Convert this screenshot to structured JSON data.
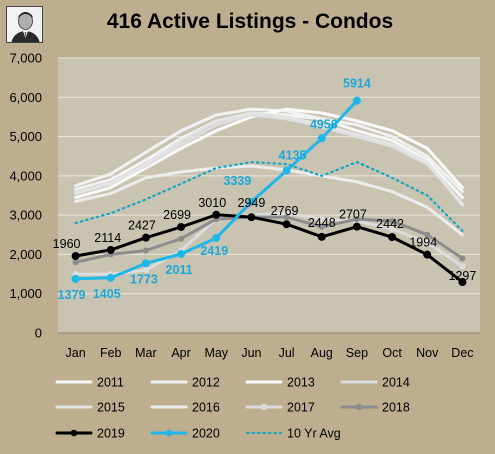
{
  "chart_data": {
    "type": "line",
    "title": "416 Active Listings - Condos",
    "xlabel": "",
    "ylabel": "",
    "categories": [
      "Jan",
      "Feb",
      "Mar",
      "Apr",
      "May",
      "Jun",
      "Jul",
      "Aug",
      "Sep",
      "Oct",
      "Nov",
      "Dec"
    ],
    "ylim": [
      0,
      7000
    ],
    "yticks": [
      "0",
      "1,000",
      "2,000",
      "3,000",
      "4,000",
      "5,000",
      "6,000",
      "7,000"
    ],
    "grid": true,
    "legend_position": "bottom",
    "series": [
      {
        "name": "2011",
        "color": "#f6f6f6",
        "values": [
          3650,
          3900,
          4400,
          4950,
          5400,
          5600,
          5550,
          5450,
          5150,
          4900,
          4400,
          3450
        ],
        "labels": false,
        "marker": false,
        "style": "solid"
      },
      {
        "name": "2012",
        "color": "#f1f1f1",
        "values": [
          3750,
          4050,
          4600,
          5150,
          5550,
          5700,
          5650,
          5450,
          5300,
          5000,
          4500,
          3600
        ],
        "labels": false,
        "marker": false,
        "style": "solid"
      },
      {
        "name": "2013",
        "color": "#fafafa",
        "values": [
          3450,
          3700,
          4200,
          4700,
          5150,
          5500,
          5700,
          5600,
          5400,
          5150,
          4700,
          3700
        ],
        "labels": false,
        "marker": false,
        "style": "solid"
      },
      {
        "name": "2014",
        "color": "#dedede",
        "values": [
          3600,
          3850,
          4250,
          4800,
          5300,
          5550,
          5450,
          5250,
          5000,
          4750,
          4300,
          3300
        ],
        "labels": false,
        "marker": false,
        "style": "solid"
      },
      {
        "name": "2015",
        "color": "#e4e4e4",
        "values": [
          3550,
          3800,
          4300,
          4900,
          5400,
          5600,
          5500,
          5300,
          5050,
          4800,
          4350,
          3250
        ],
        "labels": false,
        "marker": false,
        "style": "solid"
      },
      {
        "name": "2016",
        "color": "#ececec",
        "values": [
          3350,
          3550,
          3950,
          4100,
          4200,
          4250,
          4150,
          4000,
          3850,
          3600,
          3200,
          2500
        ],
        "labels": false,
        "marker": false,
        "style": "solid"
      },
      {
        "name": "2017",
        "color": "#dcdcdc",
        "values": [
          1500,
          1500,
          1600,
          2100,
          2900,
          3000,
          3050,
          2900,
          2850,
          2650,
          2300,
          1700
        ],
        "labels": false,
        "marker": true,
        "style": "solid"
      },
      {
        "name": "2018",
        "color": "#8c8c8c",
        "values": [
          1800,
          2000,
          2100,
          2400,
          2900,
          2950,
          2950,
          2700,
          2900,
          2850,
          2500,
          1900
        ],
        "labels": false,
        "marker": true,
        "style": "solid"
      },
      {
        "name": "2019",
        "color": "#000000",
        "values": [
          1960,
          2114,
          2427,
          2699,
          3010,
          2949,
          2769,
          2448,
          2707,
          2442,
          1994,
          1297
        ],
        "labels": true,
        "marker": true,
        "style": "solid"
      },
      {
        "name": "2020",
        "color": "#1fb7e8",
        "values": [
          1379,
          1405,
          1773,
          2011,
          2419,
          3339,
          4135,
          4956,
          5914,
          null,
          null,
          null
        ],
        "labels": true,
        "marker": true,
        "style": "solid"
      },
      {
        "name": "10 Yr Avg",
        "color": "#17a5c4",
        "values": [
          2800,
          3050,
          3400,
          3800,
          4200,
          4350,
          4300,
          4000,
          4350,
          3950,
          3500,
          2600
        ],
        "labels": false,
        "marker": false,
        "style": "dotted"
      }
    ]
  }
}
